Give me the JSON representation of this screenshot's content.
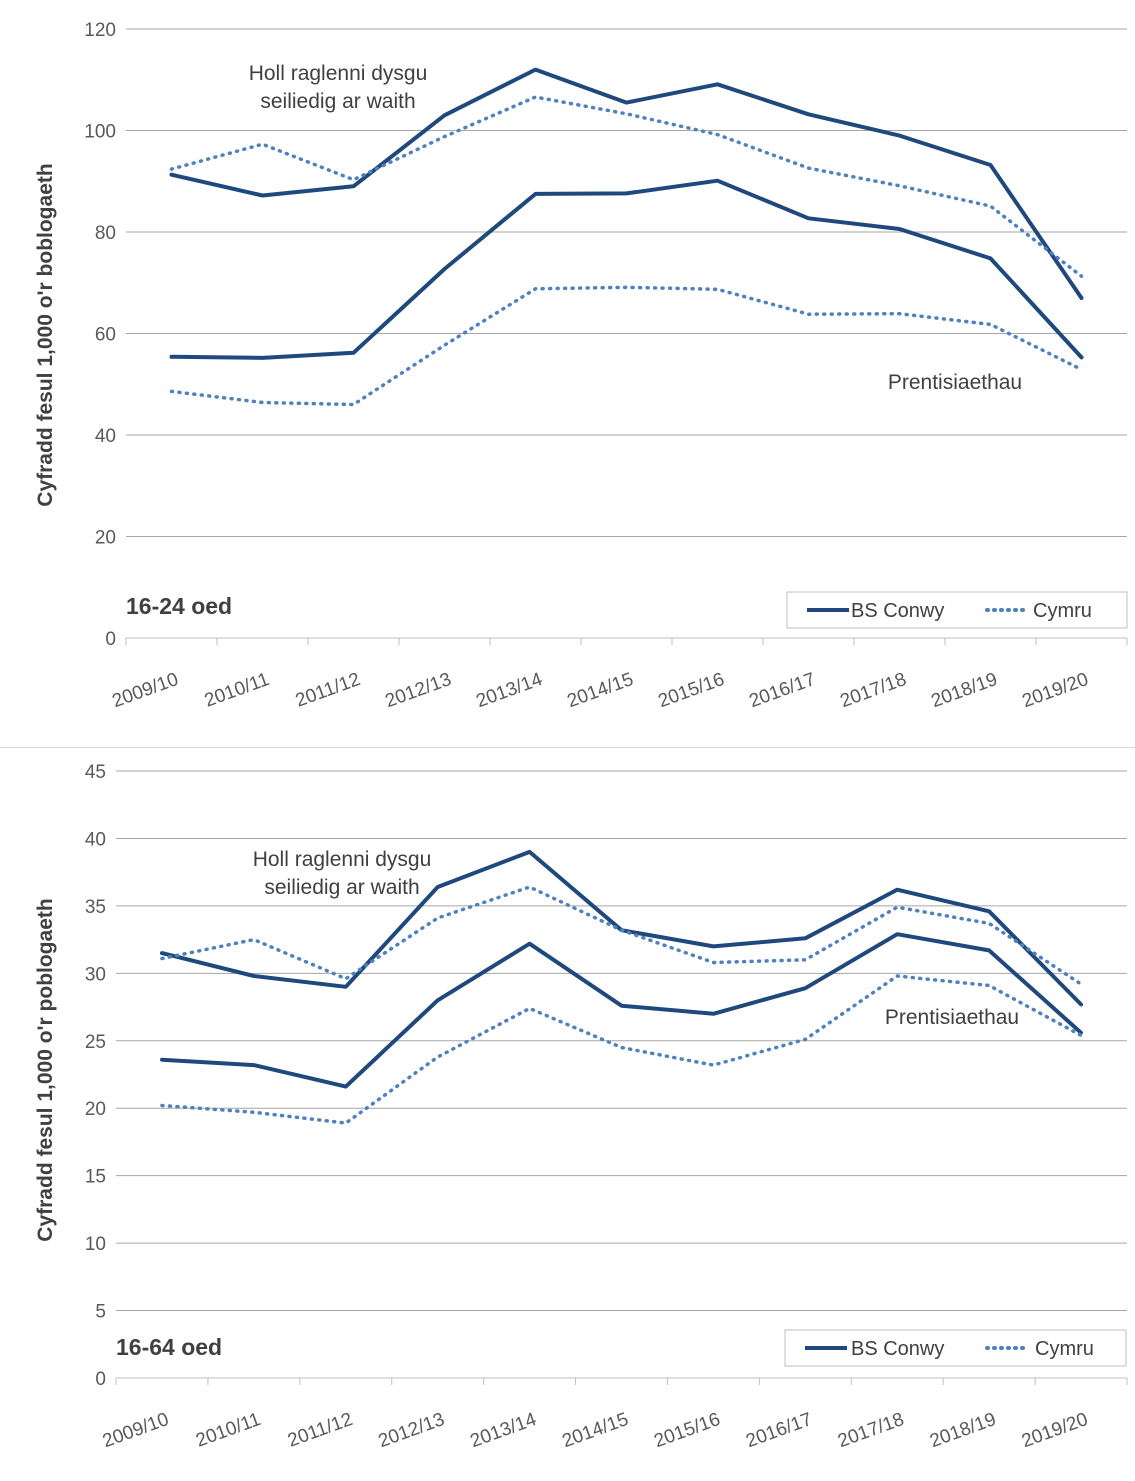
{
  "chart_data": [
    {
      "type": "line",
      "ylabel": "Cyfradd fesul 1,000 o'r boblogaeth",
      "panel_label": "16-24 oed",
      "ylim": [
        0,
        120
      ],
      "yticks": [
        0,
        20,
        40,
        60,
        80,
        100,
        120
      ],
      "grid": true,
      "legend_position": "bottom-right",
      "categories": [
        "2009/10",
        "2010/11",
        "2011/12",
        "2012/13",
        "2013/14",
        "2014/15",
        "2015/16",
        "2016/17",
        "2017/18",
        "2018/19",
        "2019/20"
      ],
      "annotations": {
        "all": [
          "Holl raglenni dysgu",
          "seiliedig ar waith"
        ],
        "apprentice": "Prentisiaethau"
      },
      "legend": [
        {
          "label": "BS Conwy",
          "color": "#1f497d",
          "style": "solid"
        },
        {
          "label": "Cymru",
          "color": "#4f81bd",
          "style": "dotted"
        }
      ],
      "series": [
        {
          "name": "BS Conwy",
          "group": "Holl raglenni dysgu seiliedig ar waith",
          "color": "#1f497d",
          "style": "solid",
          "values": [
            91.3,
            87.2,
            89.0,
            103.0,
            112.0,
            105.5,
            109.1,
            103.2,
            99.0,
            93.2,
            67.0
          ]
        },
        {
          "name": "Cymru",
          "group": "Holl raglenni dysgu seiliedig ar waith",
          "color": "#4f81bd",
          "style": "dotted",
          "values": [
            92.4,
            97.3,
            90.3,
            98.8,
            106.6,
            103.3,
            99.2,
            92.6,
            89.1,
            85.1,
            71.3
          ]
        },
        {
          "name": "BS Conwy",
          "group": "Prentisiaethau",
          "color": "#1f497d",
          "style": "solid",
          "values": [
            55.4,
            55.2,
            56.2,
            72.7,
            87.5,
            87.6,
            90.1,
            82.7,
            80.6,
            74.8,
            55.3
          ]
        },
        {
          "name": "Cymru",
          "group": "Prentisiaethau",
          "color": "#4f81bd",
          "style": "dotted",
          "values": [
            48.6,
            46.4,
            46.0,
            57.7,
            68.8,
            69.1,
            68.7,
            63.8,
            63.9,
            61.8,
            52.9
          ]
        }
      ]
    },
    {
      "type": "line",
      "ylabel": "Cyfradd fesul 1,000 o'r poblogaeth",
      "panel_label": "16-64 oed",
      "ylim": [
        0,
        45
      ],
      "yticks": [
        0,
        5,
        10,
        15,
        20,
        25,
        30,
        35,
        40,
        45
      ],
      "grid": true,
      "legend_position": "bottom-right",
      "categories": [
        "2009/10",
        "2010/11",
        "2011/12",
        "2012/13",
        "2013/14",
        "2014/15",
        "2015/16",
        "2016/17",
        "2017/18",
        "2018/19",
        "2019/20"
      ],
      "annotations": {
        "all": [
          "Holl raglenni dysgu",
          "seiliedig ar waith"
        ],
        "apprentice": "Prentisiaethau"
      },
      "legend": [
        {
          "label": "BS Conwy",
          "color": "#1f497d",
          "style": "solid"
        },
        {
          "label": "Cymru",
          "color": "#4f81bd",
          "style": "dotted"
        }
      ],
      "series": [
        {
          "name": "BS Conwy",
          "group": "Holl raglenni dysgu seiliedig ar waith",
          "color": "#1f497d",
          "style": "solid",
          "values": [
            31.5,
            29.8,
            29.0,
            36.4,
            39.0,
            33.2,
            32.0,
            32.6,
            36.2,
            34.6,
            27.7
          ]
        },
        {
          "name": "Cymru",
          "group": "Holl raglenni dysgu seiliedig ar waith",
          "color": "#4f81bd",
          "style": "dotted",
          "values": [
            31.1,
            32.5,
            29.6,
            34.1,
            36.4,
            33.2,
            30.8,
            31.0,
            34.9,
            33.7,
            29.2
          ]
        },
        {
          "name": "BS Conwy",
          "group": "Prentisiaethau",
          "color": "#1f497d",
          "style": "solid",
          "values": [
            23.6,
            23.2,
            21.6,
            28.0,
            32.2,
            27.6,
            27.0,
            28.9,
            32.9,
            31.7,
            25.6
          ]
        },
        {
          "name": "Cymru",
          "group": "Prentisiaethau",
          "color": "#4f81bd",
          "style": "dotted",
          "values": [
            20.2,
            19.7,
            18.9,
            23.8,
            27.4,
            24.5,
            23.2,
            25.1,
            29.8,
            29.1,
            25.4
          ]
        }
      ]
    }
  ]
}
